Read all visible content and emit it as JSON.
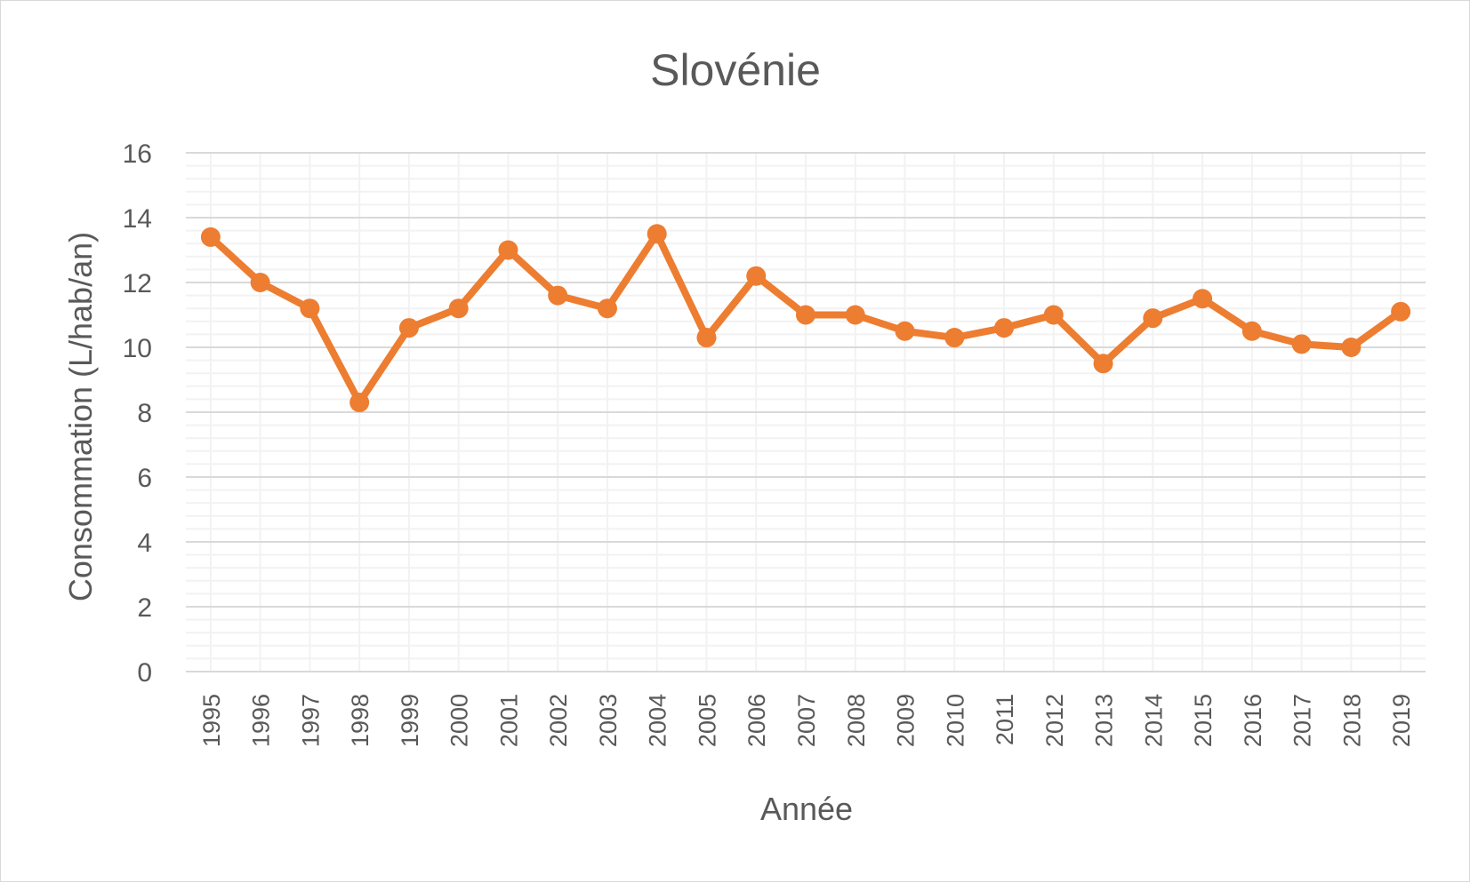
{
  "chart_data": {
    "type": "line",
    "title": "Slovénie",
    "xlabel": "Année",
    "ylabel": "Consommation (L/hab/an)",
    "ylim": [
      0,
      16
    ],
    "yticks": [
      0,
      2,
      4,
      6,
      8,
      10,
      12,
      14,
      16
    ],
    "grid": {
      "major": true,
      "minor": true
    },
    "categories": [
      "1995",
      "1996",
      "1997",
      "1998",
      "1999",
      "2000",
      "2001",
      "2002",
      "2003",
      "2004",
      "2005",
      "2006",
      "2007",
      "2008",
      "2009",
      "2010",
      "2011",
      "2012",
      "2013",
      "2014",
      "2015",
      "2016",
      "2017",
      "2018",
      "2019"
    ],
    "series": [
      {
        "values": [
          13.4,
          12.0,
          11.2,
          8.3,
          10.6,
          11.2,
          13.0,
          11.6,
          11.2,
          13.5,
          10.3,
          12.2,
          11.0,
          11.0,
          10.5,
          10.3,
          10.6,
          11.0,
          9.5,
          10.9,
          11.5,
          10.5,
          10.1,
          10.0,
          11.1
        ],
        "color": "#ED7D31"
      }
    ]
  }
}
